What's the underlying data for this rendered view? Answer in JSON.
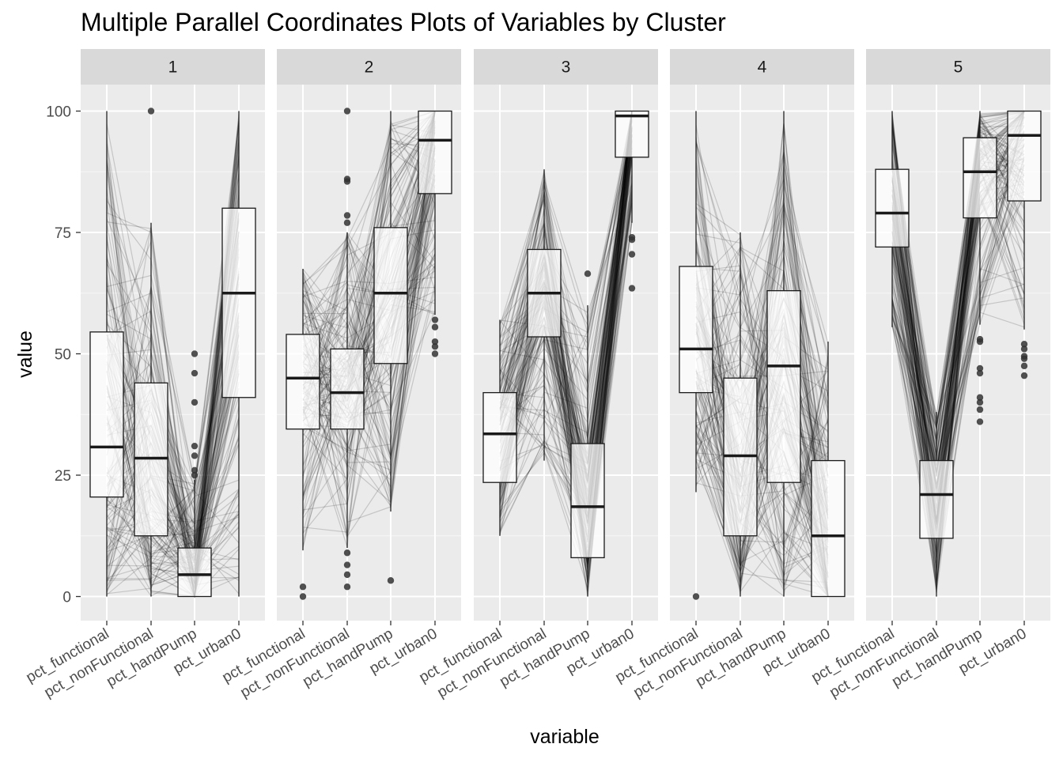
{
  "title": "Multiple Parallel Coordinates Plots of Variables by Cluster",
  "chart_data": {
    "type": "parallel-coordinates-boxplot",
    "title": "Multiple Parallel Coordinates Plots of Variables by Cluster",
    "xlabel": "variable",
    "ylabel": "value",
    "ylim": [
      -5,
      105
    ],
    "yticks": [
      0,
      25,
      50,
      75,
      100
    ],
    "variables": [
      "pct_functional",
      "pct_nonFunctional",
      "pct_handPump",
      "pct_urban0"
    ],
    "grid": true,
    "panels": [
      {
        "label": "1",
        "boxes": [
          {
            "variable": "pct_functional",
            "q1": 20.5,
            "median": 30.8,
            "q3": 54.5,
            "whisker_low": 0,
            "whisker_high": 100
          },
          {
            "variable": "pct_nonFunctional",
            "q1": 12.5,
            "median": 28.5,
            "q3": 44,
            "whisker_low": 0,
            "whisker_high": 77
          },
          {
            "variable": "pct_handPump",
            "q1": 0,
            "median": 4.5,
            "q3": 10,
            "whisker_low": 0,
            "whisker_high": 24
          },
          {
            "variable": "pct_urban0",
            "q1": 41,
            "median": 62.5,
            "q3": 80,
            "whisker_low": 0,
            "whisker_high": 100
          }
        ],
        "outliers": [
          {
            "variable": "pct_nonFunctional",
            "value": 100
          },
          {
            "variable": "pct_handPump",
            "value": 50
          },
          {
            "variable": "pct_handPump",
            "value": 46
          },
          {
            "variable": "pct_handPump",
            "value": 40
          },
          {
            "variable": "pct_handPump",
            "value": 31
          },
          {
            "variable": "pct_handPump",
            "value": 29
          },
          {
            "variable": "pct_handPump",
            "value": 26
          },
          {
            "variable": "pct_handPump",
            "value": 25
          }
        ]
      },
      {
        "label": "2",
        "boxes": [
          {
            "variable": "pct_functional",
            "q1": 34.5,
            "median": 45,
            "q3": 54,
            "whisker_low": 9.5,
            "whisker_high": 67.5
          },
          {
            "variable": "pct_nonFunctional",
            "q1": 34.5,
            "median": 42,
            "q3": 51,
            "whisker_low": 10,
            "whisker_high": 75
          },
          {
            "variable": "pct_handPump",
            "q1": 48,
            "median": 62.5,
            "q3": 76,
            "whisker_low": 17.5,
            "whisker_high": 100
          },
          {
            "variable": "pct_urban0",
            "q1": 83,
            "median": 94,
            "q3": 100,
            "whisker_low": 58,
            "whisker_high": 100
          }
        ],
        "outliers": [
          {
            "variable": "pct_functional",
            "value": 2
          },
          {
            "variable": "pct_functional",
            "value": 0
          },
          {
            "variable": "pct_nonFunctional",
            "value": 100
          },
          {
            "variable": "pct_nonFunctional",
            "value": 86
          },
          {
            "variable": "pct_nonFunctional",
            "value": 85.5
          },
          {
            "variable": "pct_nonFunctional",
            "value": 78.5
          },
          {
            "variable": "pct_nonFunctional",
            "value": 77
          },
          {
            "variable": "pct_nonFunctional",
            "value": 9
          },
          {
            "variable": "pct_nonFunctional",
            "value": 6.5
          },
          {
            "variable": "pct_nonFunctional",
            "value": 4.5
          },
          {
            "variable": "pct_nonFunctional",
            "value": 2
          },
          {
            "variable": "pct_handPump",
            "value": 3.3
          },
          {
            "variable": "pct_urban0",
            "value": 57
          },
          {
            "variable": "pct_urban0",
            "value": 55.5
          },
          {
            "variable": "pct_urban0",
            "value": 52.5
          },
          {
            "variable": "pct_urban0",
            "value": 51.5
          },
          {
            "variable": "pct_urban0",
            "value": 50
          }
        ]
      },
      {
        "label": "3",
        "boxes": [
          {
            "variable": "pct_functional",
            "q1": 23.5,
            "median": 33.5,
            "q3": 42,
            "whisker_low": 12.5,
            "whisker_high": 57
          },
          {
            "variable": "pct_nonFunctional",
            "q1": 53.5,
            "median": 62.5,
            "q3": 71.5,
            "whisker_low": 28,
            "whisker_high": 88
          },
          {
            "variable": "pct_handPump",
            "q1": 8,
            "median": 18.5,
            "q3": 31.5,
            "whisker_low": 0,
            "whisker_high": 60
          },
          {
            "variable": "pct_urban0",
            "q1": 90.5,
            "median": 99,
            "q3": 100,
            "whisker_low": 77,
            "whisker_high": 100
          }
        ],
        "outliers": [
          {
            "variable": "pct_handPump",
            "value": 66.5
          },
          {
            "variable": "pct_urban0",
            "value": 74
          },
          {
            "variable": "pct_urban0",
            "value": 73.5
          },
          {
            "variable": "pct_urban0",
            "value": 70.5
          },
          {
            "variable": "pct_urban0",
            "value": 63.5
          }
        ]
      },
      {
        "label": "4",
        "boxes": [
          {
            "variable": "pct_functional",
            "q1": 42,
            "median": 51,
            "q3": 68,
            "whisker_low": 21.5,
            "whisker_high": 100
          },
          {
            "variable": "pct_nonFunctional",
            "q1": 12.5,
            "median": 29,
            "q3": 45,
            "whisker_low": 0,
            "whisker_high": 75
          },
          {
            "variable": "pct_handPump",
            "q1": 23.5,
            "median": 47.5,
            "q3": 63,
            "whisker_low": 0,
            "whisker_high": 100
          },
          {
            "variable": "pct_urban0",
            "q1": 0,
            "median": 12.5,
            "q3": 28,
            "whisker_low": 0,
            "whisker_high": 52.5
          }
        ],
        "outliers": [
          {
            "variable": "pct_functional",
            "value": 0
          }
        ]
      },
      {
        "label": "5",
        "boxes": [
          {
            "variable": "pct_functional",
            "q1": 72,
            "median": 79,
            "q3": 88,
            "whisker_low": 55.5,
            "whisker_high": 100
          },
          {
            "variable": "pct_nonFunctional",
            "q1": 12,
            "median": 21,
            "q3": 28,
            "whisker_low": 0,
            "whisker_high": 38
          },
          {
            "variable": "pct_handPump",
            "q1": 78,
            "median": 87.5,
            "q3": 94.5,
            "whisker_low": 56,
            "whisker_high": 100
          },
          {
            "variable": "pct_urban0",
            "q1": 81.5,
            "median": 95,
            "q3": 100,
            "whisker_low": 55,
            "whisker_high": 100
          }
        ],
        "outliers": [
          {
            "variable": "pct_handPump",
            "value": 53
          },
          {
            "variable": "pct_handPump",
            "value": 52.5
          },
          {
            "variable": "pct_handPump",
            "value": 47
          },
          {
            "variable": "pct_handPump",
            "value": 46
          },
          {
            "variable": "pct_handPump",
            "value": 41
          },
          {
            "variable": "pct_handPump",
            "value": 40
          },
          {
            "variable": "pct_handPump",
            "value": 38.5
          },
          {
            "variable": "pct_handPump",
            "value": 36
          },
          {
            "variable": "pct_urban0",
            "value": 52
          },
          {
            "variable": "pct_urban0",
            "value": 51
          },
          {
            "variable": "pct_urban0",
            "value": 49.5
          },
          {
            "variable": "pct_urban0",
            "value": 49
          },
          {
            "variable": "pct_urban0",
            "value": 47.5
          },
          {
            "variable": "pct_urban0",
            "value": 45.5
          }
        ]
      }
    ]
  }
}
